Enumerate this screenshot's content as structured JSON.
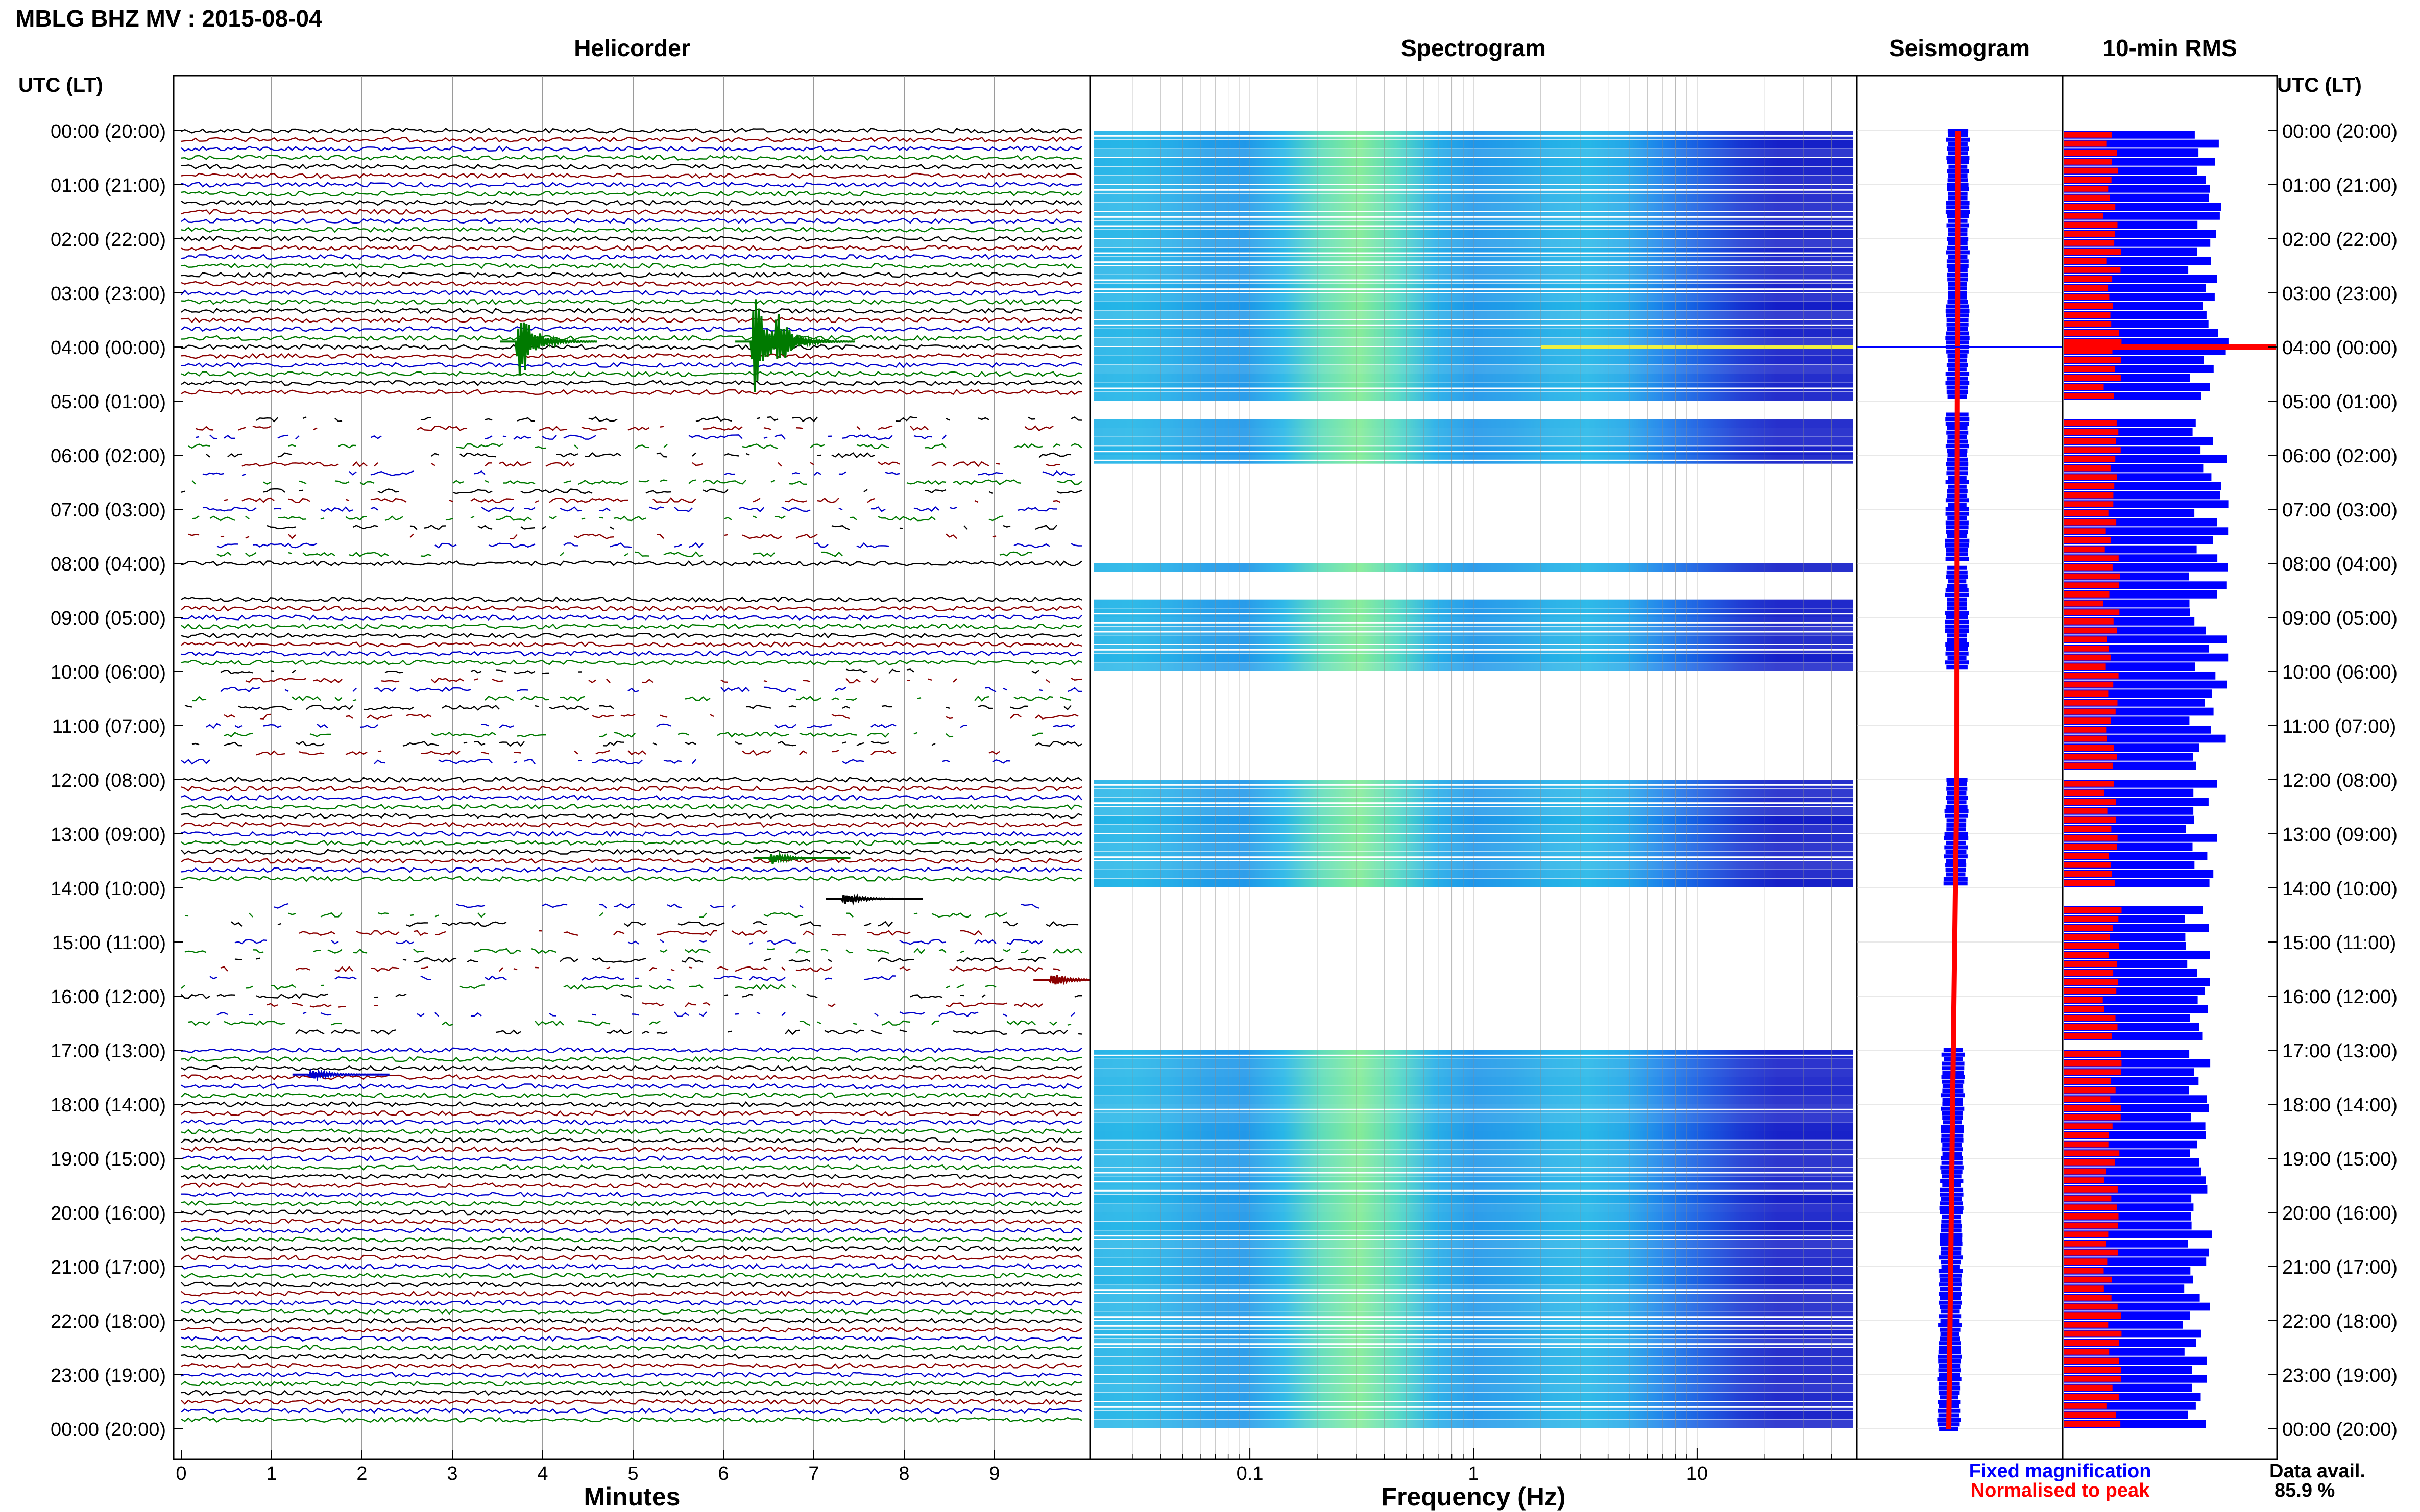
{
  "header": {
    "title": "MBLG BHZ MV : 2015-08-04"
  },
  "panels": {
    "helicorder": "Helicorder",
    "spectrogram": "Spectrogram",
    "seismogram": "Seismogram",
    "rms": "10-min RMS"
  },
  "axis_labels": {
    "left_time": "UTC (LT)",
    "right_time": "UTC (LT)",
    "helicorder_x": "Minutes",
    "spectrogram_x": "Frequency (Hz)"
  },
  "legend": {
    "fixed": "Fixed magnification",
    "normalised": "Normalised to peak",
    "data_avail_label": "Data avail.",
    "data_avail_value": "85.9 %"
  },
  "colors": {
    "trace_cycle": [
      "#000000",
      "#8b0000",
      "#0000cc",
      "#007a00"
    ],
    "fixed": "#0000ff",
    "normalised": "#ff0000"
  },
  "chart_data": {
    "type": "heatmap",
    "time_ticks": [
      "00:00 (20:00)",
      "01:00 (21:00)",
      "02:00 (22:00)",
      "03:00 (23:00)",
      "04:00 (00:00)",
      "05:00 (01:00)",
      "06:00 (02:00)",
      "07:00 (03:00)",
      "08:00 (04:00)",
      "09:00 (05:00)",
      "10:00 (06:00)",
      "11:00 (07:00)",
      "12:00 (08:00)",
      "13:00 (09:00)",
      "14:00 (10:00)",
      "15:00 (11:00)",
      "16:00 (12:00)",
      "17:00 (13:00)",
      "18:00 (14:00)",
      "19:00 (15:00)",
      "20:00 (16:00)",
      "21:00 (17:00)",
      "22:00 (18:00)",
      "23:00 (19:00)",
      "00:00 (20:00)"
    ],
    "minute_ticks": [
      "0",
      "1",
      "2",
      "3",
      "4",
      "5",
      "6",
      "7",
      "8",
      "9"
    ],
    "freq_ticks": [
      {
        "value": 0.1,
        "label": "0.1"
      },
      {
        "value": 1,
        "label": "1"
      },
      {
        "value": 10,
        "label": "10"
      }
    ],
    "freq_range": [
      0.02,
      50
    ],
    "lines_per_hour": 6,
    "data_gaps_hours": [
      [
        5.0,
        5.17
      ],
      [
        6.05,
        8.0
      ],
      [
        8.05,
        8.55
      ],
      [
        9.95,
        12.0
      ],
      [
        14.0,
        17.0
      ]
    ],
    "intermittent_hours": [
      [
        5.2,
        7.95
      ],
      [
        10.0,
        11.7
      ],
      [
        14.2,
        16.8
      ]
    ],
    "events": [
      {
        "hour": 3.9,
        "minute": 3.7,
        "amplitude": 2.2
      },
      {
        "hour": 3.9,
        "minute": 6.3,
        "amplitude": 2.6
      },
      {
        "hour": 3.9,
        "minute": 6.55,
        "amplitude": 1.6
      },
      {
        "hour": 13.45,
        "minute": 6.5,
        "amplitude": 0.3
      },
      {
        "hour": 14.2,
        "minute": 7.3,
        "amplitude": 0.35
      },
      {
        "hour": 15.7,
        "minute": 9.6,
        "amplitude": 0.35
      },
      {
        "hour": 17.45,
        "minute": 1.4,
        "amplitude": 0.3
      }
    ],
    "spike_hour": 4.0,
    "rms_fixed_range": [
      0.55,
      0.85
    ],
    "rms_normalised_range": [
      0.2,
      0.3
    ]
  }
}
